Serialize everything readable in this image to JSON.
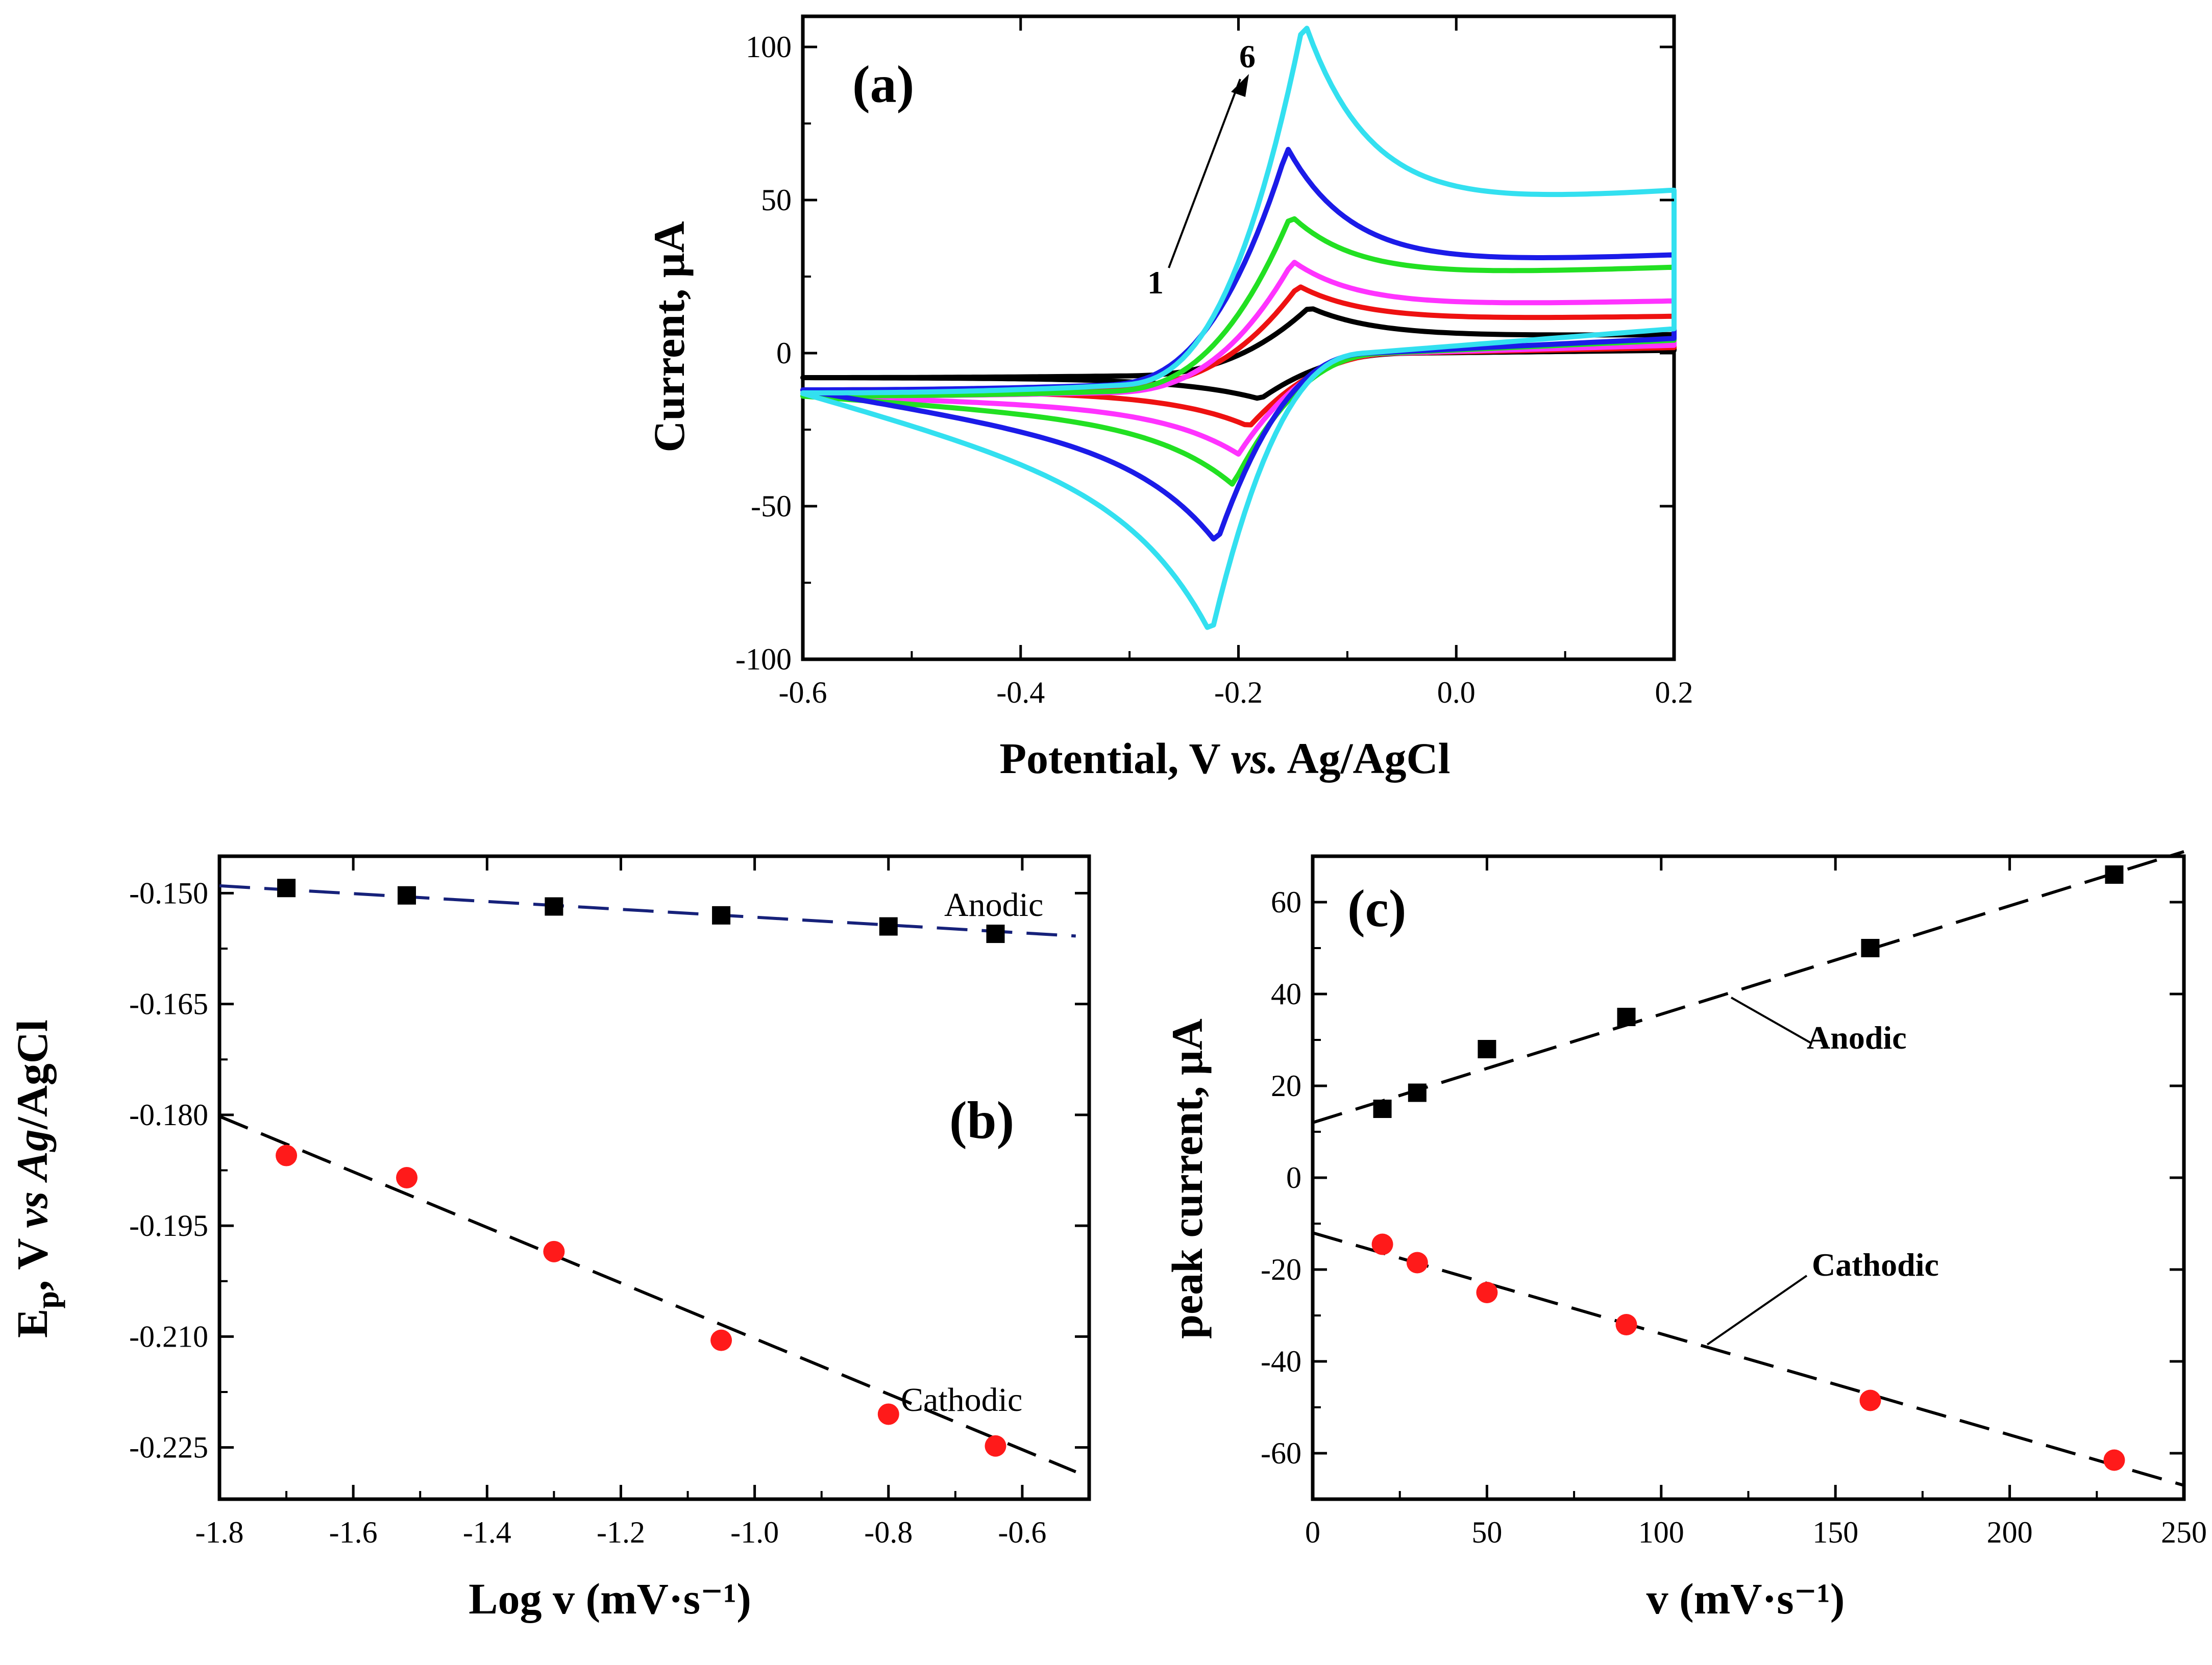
{
  "colors": {
    "cyan": "#33e0f0",
    "blue": "#1b1be8",
    "green": "#22e022",
    "magenta": "#ff33ff",
    "red": "#ee1111",
    "black": "#000000",
    "navy": "#16217a",
    "marker_red": "#ff1a1a"
  },
  "chart_data": [
    {
      "id": "a",
      "type": "line",
      "panel_label": "(a)",
      "xlabel": "Potential, V vs. Ag/AgCl",
      "xlabel_pre": "Potential, V ",
      "xlabel_italic": "vs.",
      "xlabel_post": " Ag/AgCl",
      "ylabel": "Current, μA",
      "xlim": [
        -0.6,
        0.2
      ],
      "ylim": [
        -100,
        110
      ],
      "xticks": [
        -0.6,
        -0.4,
        -0.2,
        0.0,
        0.2
      ],
      "xtick_labels": [
        "-0.6",
        "-0.4",
        "-0.2",
        "0.0",
        "0.2"
      ],
      "yticks": [
        -100,
        -50,
        0,
        50,
        100
      ],
      "ytick_labels": [
        "-100",
        "-50",
        "0",
        "50",
        "100"
      ],
      "arrow_start_label": "1",
      "arrow_end_label": "6",
      "series": [
        {
          "name": "1",
          "color": "black",
          "Epa": -0.135,
          "ipa": 15,
          "Epc": -0.18,
          "ipc": -15,
          "i_end_fwd": 6,
          "i_start": -8
        },
        {
          "name": "2",
          "color": "red",
          "Epa": -0.145,
          "ipa": 22,
          "Epc": -0.19,
          "ipc": -24,
          "i_end_fwd": 12,
          "i_start": -12
        },
        {
          "name": "3",
          "color": "magenta",
          "Epa": -0.15,
          "ipa": 30,
          "Epc": -0.2,
          "ipc": -33,
          "i_end_fwd": 17,
          "i_start": -14
        },
        {
          "name": "4",
          "color": "green",
          "Epa": -0.152,
          "ipa": 45,
          "Epc": -0.205,
          "ipc": -43,
          "i_end_fwd": 28,
          "i_start": -14
        },
        {
          "name": "5",
          "color": "blue",
          "Epa": -0.155,
          "ipa": 67,
          "Epc": -0.22,
          "ipc": -62,
          "i_end_fwd": 32,
          "i_start": -12
        },
        {
          "name": "6",
          "color": "cyan",
          "Epa": -0.14,
          "ipa": 109,
          "Epc": -0.225,
          "ipc": -92,
          "i_end_fwd": 53,
          "i_start": -13
        }
      ]
    },
    {
      "id": "b",
      "type": "scatter",
      "panel_label": "(b)",
      "xlabel": "Log v (mV·s⁻¹)",
      "ylabel": "Ep, V vs Ag/AgCl",
      "ylabel_E": "E",
      "ylabel_sub": "p",
      "ylabel_mid": ", V ",
      "ylabel_italic1": "vs",
      "ylabel_space": " ",
      "ylabel_italic2": "Ag",
      "ylabel_post": "/AgCl",
      "xlim": [
        -1.8,
        -0.5
      ],
      "ylim": [
        -0.232,
        -0.145
      ],
      "xticks": [
        -1.8,
        -1.6,
        -1.4,
        -1.2,
        -1.0,
        -0.8,
        -0.6
      ],
      "xtick_labels": [
        "-1.8",
        "-1.6",
        "-1.4",
        "-1.2",
        "-1.0",
        "-0.8",
        "-0.6"
      ],
      "yticks": [
        -0.15,
        -0.165,
        -0.18,
        -0.195,
        -0.21,
        -0.225
      ],
      "ytick_labels": [
        "-0.150",
        "-0.165",
        "-0.180",
        "-0.195",
        "-0.210",
        "-0.225"
      ],
      "series": [
        {
          "name": "Anodic",
          "marker": "square",
          "color": "black",
          "line_color": "navy",
          "x": [
            -1.7,
            -1.52,
            -1.3,
            -1.05,
            -0.8,
            -0.64
          ],
          "y": [
            -0.1493,
            -0.1503,
            -0.1518,
            -0.153,
            -0.1545,
            -0.1555
          ],
          "fit": {
            "x": [
              -1.8,
              -0.52
            ],
            "y": [
              -0.149,
              -0.1558
            ]
          }
        },
        {
          "name": "Cathodic",
          "marker": "circle",
          "color": "marker_red",
          "line_color": "black",
          "x": [
            -1.7,
            -1.52,
            -1.3,
            -1.05,
            -0.8,
            -0.64
          ],
          "y": [
            -0.1855,
            -0.1885,
            -0.1985,
            -0.2105,
            -0.2205,
            -0.2248
          ],
          "fit": {
            "x": [
              -1.8,
              -0.52
            ],
            "y": [
              -0.1802,
              -0.2283
            ]
          }
        }
      ],
      "annotations": {
        "anodic": "Anodic",
        "cathodic": "Cathodic"
      }
    },
    {
      "id": "c",
      "type": "scatter",
      "panel_label": "(c)",
      "xlabel": "v (mV·s⁻¹)",
      "ylabel": "peak current, μA",
      "xlim": [
        0,
        250
      ],
      "ylim": [
        -70,
        70
      ],
      "xticks": [
        0,
        50,
        100,
        150,
        200,
        250
      ],
      "xtick_labels": [
        "0",
        "50",
        "100",
        "150",
        "200",
        "250"
      ],
      "yticks": [
        -60,
        -40,
        -20,
        0,
        20,
        40,
        60
      ],
      "ytick_labels": [
        "-60",
        "-40",
        "-20",
        "0",
        "20",
        "40",
        "60"
      ],
      "series": [
        {
          "name": "Anodic",
          "marker": "square",
          "color": "black",
          "line_color": "black",
          "x": [
            20,
            30,
            50,
            90,
            160,
            230
          ],
          "y": [
            15,
            18.5,
            28,
            35,
            50,
            66
          ],
          "fit": {
            "x": [
              0,
              250
            ],
            "y": [
              12,
              71
            ]
          }
        },
        {
          "name": "Cathodic",
          "marker": "circle",
          "color": "marker_red",
          "line_color": "black",
          "x": [
            20,
            30,
            50,
            90,
            160,
            230
          ],
          "y": [
            -14.5,
            -18.5,
            -25,
            -32,
            -48.5,
            -61.5
          ],
          "fit": {
            "x": [
              0,
              250
            ],
            "y": [
              -12,
              -67
            ]
          }
        }
      ],
      "annotations": {
        "anodic": "Anodic",
        "cathodic": "Cathodic"
      }
    }
  ]
}
